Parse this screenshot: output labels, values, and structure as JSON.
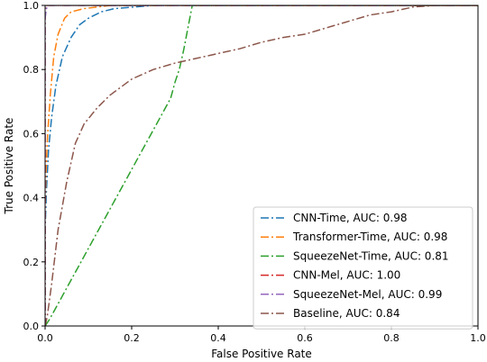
{
  "chart_data": {
    "type": "line",
    "title": "",
    "xlabel": "False Positive Rate",
    "ylabel": "True Positive Rate",
    "xlim": [
      0.0,
      1.0
    ],
    "ylim": [
      0.0,
      1.0
    ],
    "xticks": [
      "0.0",
      "0.2",
      "0.4",
      "0.6",
      "0.8",
      "1.0"
    ],
    "yticks": [
      "0.0",
      "0.2",
      "0.4",
      "0.6",
      "0.8",
      "1.0"
    ],
    "grid": false,
    "legend_position": "lower-right",
    "series": [
      {
        "name": "CNN-Time, AUC: 0.98",
        "color": "#1f77b4",
        "points": [
          [
            0,
            0
          ],
          [
            0,
            0.3
          ],
          [
            0.003,
            0.42
          ],
          [
            0.008,
            0.55
          ],
          [
            0.015,
            0.65
          ],
          [
            0.025,
            0.75
          ],
          [
            0.04,
            0.84
          ],
          [
            0.06,
            0.9
          ],
          [
            0.08,
            0.94
          ],
          [
            0.1,
            0.96
          ],
          [
            0.13,
            0.98
          ],
          [
            0.16,
            0.99
          ],
          [
            0.25,
            1.0
          ],
          [
            1,
            1
          ]
        ]
      },
      {
        "name": "Transformer-Time, AUC: 0.98",
        "color": "#ff7f0e",
        "points": [
          [
            0,
            0
          ],
          [
            0,
            0.35
          ],
          [
            0.002,
            0.48
          ],
          [
            0.006,
            0.6
          ],
          [
            0.012,
            0.72
          ],
          [
            0.02,
            0.84
          ],
          [
            0.03,
            0.91
          ],
          [
            0.045,
            0.96
          ],
          [
            0.06,
            0.98
          ],
          [
            0.09,
            0.99
          ],
          [
            0.15,
            1.0
          ],
          [
            1,
            1
          ]
        ]
      },
      {
        "name": "SqueezeNet-Time, AUC: 0.81",
        "color": "#2ca02c",
        "points": [
          [
            0,
            0
          ],
          [
            0.01,
            0.02
          ],
          [
            0.29,
            0.71
          ],
          [
            0.3,
            0.76
          ],
          [
            0.31,
            0.8
          ],
          [
            0.32,
            0.86
          ],
          [
            0.33,
            0.93
          ],
          [
            0.34,
            1.0
          ],
          [
            1,
            1
          ]
        ]
      },
      {
        "name": "CNN-Mel, AUC: 1.00",
        "color": "#d62728",
        "points": [
          [
            0,
            0
          ],
          [
            0,
            0.99
          ],
          [
            0.001,
            1.0
          ],
          [
            1,
            1
          ]
        ]
      },
      {
        "name": "SqueezeNet-Mel, AUC: 0.99",
        "color": "#9467bd",
        "points": [
          [
            0,
            0
          ],
          [
            0,
            0.96
          ],
          [
            0.003,
            0.99
          ],
          [
            0.008,
            1.0
          ],
          [
            1,
            1
          ]
        ]
      },
      {
        "name": "Baseline, AUC: 0.84",
        "color": "#8c564b",
        "points": [
          [
            0,
            0
          ],
          [
            0.005,
            0.03
          ],
          [
            0.015,
            0.13
          ],
          [
            0.03,
            0.3
          ],
          [
            0.05,
            0.45
          ],
          [
            0.07,
            0.57
          ],
          [
            0.09,
            0.63
          ],
          [
            0.12,
            0.68
          ],
          [
            0.15,
            0.72
          ],
          [
            0.2,
            0.77
          ],
          [
            0.25,
            0.8
          ],
          [
            0.3,
            0.82
          ],
          [
            0.35,
            0.835
          ],
          [
            0.4,
            0.85
          ],
          [
            0.45,
            0.865
          ],
          [
            0.5,
            0.885
          ],
          [
            0.55,
            0.9
          ],
          [
            0.6,
            0.91
          ],
          [
            0.65,
            0.93
          ],
          [
            0.7,
            0.95
          ],
          [
            0.75,
            0.97
          ],
          [
            0.8,
            0.98
          ],
          [
            0.85,
            0.995
          ],
          [
            0.9,
            1.0
          ],
          [
            1,
            1
          ]
        ]
      }
    ]
  }
}
